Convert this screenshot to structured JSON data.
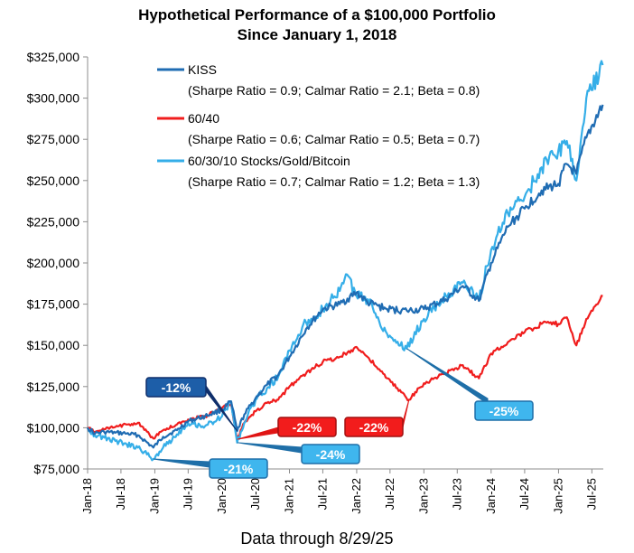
{
  "chart_data": {
    "type": "line",
    "title": "Hypothetical Performance of a $100,000 Portfolio",
    "subtitle": "Since January 1, 2018",
    "footnote": "Data through 8/29/25",
    "ylim": [
      75000,
      325000
    ],
    "y_ticks": [
      75000,
      100000,
      125000,
      150000,
      175000,
      200000,
      225000,
      250000,
      275000,
      300000,
      325000
    ],
    "y_tick_labels": [
      "$75,000",
      "$100,000",
      "$125,000",
      "$150,000",
      "$175,000",
      "$200,000",
      "$225,000",
      "$250,000",
      "$275,000",
      "$300,000",
      "$325,000"
    ],
    "x_ticks": [
      "2018-01-01",
      "2018-07-01",
      "2019-01-01",
      "2019-07-01",
      "2020-01-01",
      "2020-07-01",
      "2021-01-01",
      "2021-07-01",
      "2022-01-01",
      "2022-07-01",
      "2023-01-01",
      "2023-07-01",
      "2024-01-01",
      "2024-07-01",
      "2025-01-01",
      "2025-07-01"
    ],
    "x_tick_labels": [
      "Jan-18",
      "Jul-18",
      "Jan-19",
      "Jul-19",
      "Jan-20",
      "Jul-20",
      "Jan-21",
      "Jul-21",
      "Jan-22",
      "Jul-22",
      "Jan-23",
      "Jul-23",
      "Jan-24",
      "Jul-24",
      "Jan-25",
      "Jul-25"
    ],
    "xlim": [
      "2018-01-01",
      "2025-09-01"
    ],
    "grid": false,
    "legend_position": "top-left",
    "series": [
      {
        "name": "KISS",
        "legend_detail": "(Sharpe Ratio = 0.9; Calmar Ratio = 2.1; Beta = 0.8)",
        "color": "#1f6cb3",
        "points": [
          [
            "2018-01-01",
            100000
          ],
          [
            "2018-02-10",
            96500
          ],
          [
            "2018-04-01",
            97500
          ],
          [
            "2018-06-01",
            97000
          ],
          [
            "2018-08-01",
            96500
          ],
          [
            "2018-10-01",
            95500
          ],
          [
            "2018-12-24",
            88000
          ],
          [
            "2019-02-15",
            94500
          ],
          [
            "2019-05-01",
            98500
          ],
          [
            "2019-07-01",
            104000
          ],
          [
            "2019-10-01",
            107000
          ],
          [
            "2020-01-01",
            111000
          ],
          [
            "2020-02-19",
            116000
          ],
          [
            "2020-03-23",
            98000
          ],
          [
            "2020-05-01",
            108000
          ],
          [
            "2020-07-01",
            118000
          ],
          [
            "2020-09-01",
            126000
          ],
          [
            "2020-11-01",
            132000
          ],
          [
            "2021-01-01",
            143000
          ],
          [
            "2021-04-01",
            160000
          ],
          [
            "2021-07-01",
            172000
          ],
          [
            "2021-10-01",
            175000
          ],
          [
            "2021-12-31",
            182000
          ],
          [
            "2022-03-01",
            176000
          ],
          [
            "2022-06-15",
            172000
          ],
          [
            "2022-10-01",
            171000
          ],
          [
            "2023-01-01",
            172000
          ],
          [
            "2023-05-01",
            178000
          ],
          [
            "2023-07-31",
            186000
          ],
          [
            "2023-10-27",
            177000
          ],
          [
            "2024-01-01",
            200000
          ],
          [
            "2024-04-01",
            222000
          ],
          [
            "2024-07-01",
            233000
          ],
          [
            "2024-10-01",
            244000
          ],
          [
            "2024-12-31",
            248000
          ],
          [
            "2025-02-15",
            260000
          ],
          [
            "2025-04-08",
            254000
          ],
          [
            "2025-06-01",
            276000
          ],
          [
            "2025-08-29",
            296000
          ]
        ]
      },
      {
        "name": "60/40",
        "legend_detail": "(Sharpe Ratio = 0.6; Calmar Ratio = 0.5; Beta = 0.7)",
        "color": "#f01d1d",
        "points": [
          [
            "2018-01-01",
            100000
          ],
          [
            "2018-02-10",
            97500
          ],
          [
            "2018-04-01",
            99000
          ],
          [
            "2018-06-01",
            100500
          ],
          [
            "2018-08-01",
            102000
          ],
          [
            "2018-10-01",
            103000
          ],
          [
            "2018-12-24",
            93500
          ],
          [
            "2019-02-15",
            98500
          ],
          [
            "2019-05-01",
            102000
          ],
          [
            "2019-07-01",
            105000
          ],
          [
            "2019-10-01",
            107000
          ],
          [
            "2020-01-01",
            112000
          ],
          [
            "2020-02-19",
            114000
          ],
          [
            "2020-03-23",
            93000
          ],
          [
            "2020-05-01",
            103000
          ],
          [
            "2020-07-01",
            110000
          ],
          [
            "2020-09-01",
            115000
          ],
          [
            "2020-11-01",
            117000
          ],
          [
            "2021-01-01",
            125000
          ],
          [
            "2021-04-01",
            133000
          ],
          [
            "2021-07-01",
            140000
          ],
          [
            "2021-10-01",
            143000
          ],
          [
            "2021-12-31",
            149000
          ],
          [
            "2022-03-01",
            143000
          ],
          [
            "2022-06-15",
            130000
          ],
          [
            "2022-10-12",
            117000
          ],
          [
            "2023-01-01",
            127000
          ],
          [
            "2023-05-01",
            133000
          ],
          [
            "2023-07-31",
            138000
          ],
          [
            "2023-10-27",
            130000
          ],
          [
            "2024-01-01",
            145000
          ],
          [
            "2024-04-01",
            152000
          ],
          [
            "2024-07-01",
            158000
          ],
          [
            "2024-10-01",
            163000
          ],
          [
            "2024-12-31",
            163000
          ],
          [
            "2025-02-15",
            167000
          ],
          [
            "2025-04-08",
            150000
          ],
          [
            "2025-06-01",
            166000
          ],
          [
            "2025-08-29",
            180000
          ]
        ]
      },
      {
        "name": "60/30/10 Stocks/Gold/Bitcoin",
        "legend_detail": "(Sharpe Ratio = 0.7; Calmar Ratio = 1.2; Beta = 1.3)",
        "color": "#35aee8",
        "points": [
          [
            "2018-01-01",
            100000
          ],
          [
            "2018-02-10",
            95500
          ],
          [
            "2018-04-01",
            94000
          ],
          [
            "2018-06-01",
            92000
          ],
          [
            "2018-08-01",
            90000
          ],
          [
            "2018-10-01",
            88000
          ],
          [
            "2018-12-24",
            81000
          ],
          [
            "2019-02-15",
            88000
          ],
          [
            "2019-05-01",
            96000
          ],
          [
            "2019-07-01",
            103000
          ],
          [
            "2019-10-01",
            101000
          ],
          [
            "2020-01-01",
            107000
          ],
          [
            "2020-02-19",
            116000
          ],
          [
            "2020-03-23",
            91000
          ],
          [
            "2020-05-01",
            103000
          ],
          [
            "2020-07-01",
            117000
          ],
          [
            "2020-09-01",
            124000
          ],
          [
            "2020-11-01",
            131000
          ],
          [
            "2021-01-01",
            147000
          ],
          [
            "2021-04-01",
            164000
          ],
          [
            "2021-07-01",
            172000
          ],
          [
            "2021-10-01",
            183000
          ],
          [
            "2021-11-10",
            193000
          ],
          [
            "2021-12-31",
            180000
          ],
          [
            "2022-03-01",
            178000
          ],
          [
            "2022-06-15",
            157000
          ],
          [
            "2022-09-30",
            148000
          ],
          [
            "2023-01-01",
            166000
          ],
          [
            "2023-05-01",
            180000
          ],
          [
            "2023-07-31",
            188000
          ],
          [
            "2023-10-27",
            178000
          ],
          [
            "2024-01-01",
            208000
          ],
          [
            "2024-04-01",
            230000
          ],
          [
            "2024-07-01",
            240000
          ],
          [
            "2024-10-01",
            258000
          ],
          [
            "2024-12-31",
            268000
          ],
          [
            "2025-02-15",
            274000
          ],
          [
            "2025-04-08",
            250000
          ],
          [
            "2025-06-01",
            300000
          ],
          [
            "2025-08-29",
            320000
          ]
        ]
      }
    ],
    "annotations": [
      {
        "text": "-12%",
        "style": "navy"
      },
      {
        "text": "-21%",
        "style": "light"
      },
      {
        "text": "-22%",
        "style": "red"
      },
      {
        "text": "-24%",
        "style": "light"
      },
      {
        "text": "-22%",
        "style": "red"
      },
      {
        "text": "-25%",
        "style": "light"
      }
    ]
  }
}
